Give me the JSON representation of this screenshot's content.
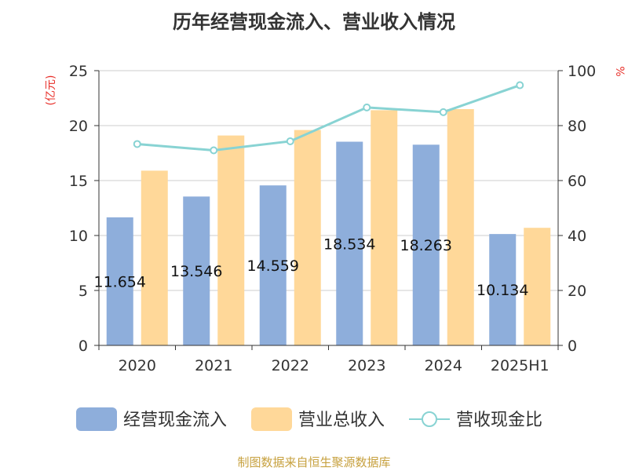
{
  "chart_data": {
    "type": "bar",
    "title": "历年经营现金流入、营业收入情况",
    "categories": [
      "2020",
      "2021",
      "2022",
      "2023",
      "2024",
      "2025H1"
    ],
    "series": [
      {
        "name": "经营现金流入",
        "axis": "left",
        "color": "#8eaedb",
        "values": [
          11.654,
          13.546,
          14.559,
          18.534,
          18.263,
          10.134
        ],
        "labels": [
          "11.654",
          "13.546",
          "14.559",
          "18.534",
          "18.263",
          "10.134"
        ]
      },
      {
        "name": "营业总收入",
        "axis": "left",
        "color": "#ffd899",
        "values": [
          15.9,
          19.1,
          19.6,
          21.4,
          21.5,
          10.7
        ]
      },
      {
        "name": "营收现金比",
        "axis": "right",
        "type": "line",
        "color": "#88d3d3",
        "values": [
          73.3,
          71.0,
          74.3,
          86.6,
          84.9,
          94.7
        ]
      }
    ],
    "ylabel": "(亿元)",
    "ylabel_right": "%",
    "ylim": [
      0,
      25
    ],
    "y_ticks": [
      "0",
      "5",
      "10",
      "15",
      "20",
      "25"
    ],
    "ylim_right": [
      0,
      100
    ],
    "y_ticks_right": [
      "0",
      "20",
      "40",
      "60",
      "80",
      "100"
    ],
    "grid": true,
    "legend": "bottom-center"
  },
  "source": "制图数据来自恒生聚源数据库"
}
